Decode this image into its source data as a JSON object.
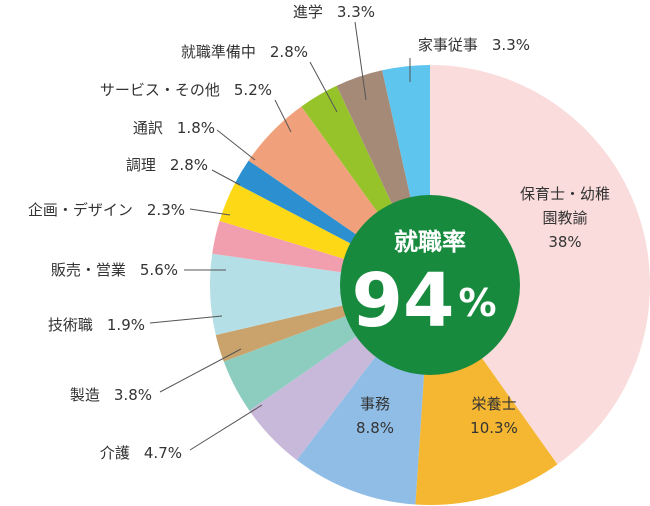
{
  "chart_data": {
    "type": "donut",
    "categories": [
      "保育士・幼稚園教諭",
      "栄養士",
      "事務",
      "介護",
      "製造",
      "技術職",
      "販売・営業",
      "企画・デザイン",
      "調理",
      "通訳",
      "サービス・その他",
      "就職準備中",
      "進学",
      "家事従事"
    ],
    "values": [
      38,
      10.3,
      8.8,
      4.7,
      3.8,
      1.9,
      5.6,
      2.3,
      2.8,
      1.8,
      5.2,
      2.8,
      3.3,
      3.3
    ],
    "value_labels": [
      "38%",
      "10.3%",
      "8.8%",
      "4.7%",
      "3.8%",
      "1.9%",
      "5.6%",
      "2.3%",
      "2.8%",
      "1.8%",
      "5.2%",
      "2.8%",
      "3.3%",
      "3.3%"
    ],
    "colors": [
      "#fadcdc",
      "#f5b731",
      "#8fbde6",
      "#c8b8da",
      "#8ccdc0",
      "#c9a36b",
      "#b5dfe6",
      "#f19fae",
      "#fcd817",
      "#2c8fd0",
      "#f0a07a",
      "#97c32a",
      "#a68a78",
      "#5ec5ef"
    ],
    "center_title": "就職率",
    "center_value": 94,
    "center_unit": "%"
  }
}
